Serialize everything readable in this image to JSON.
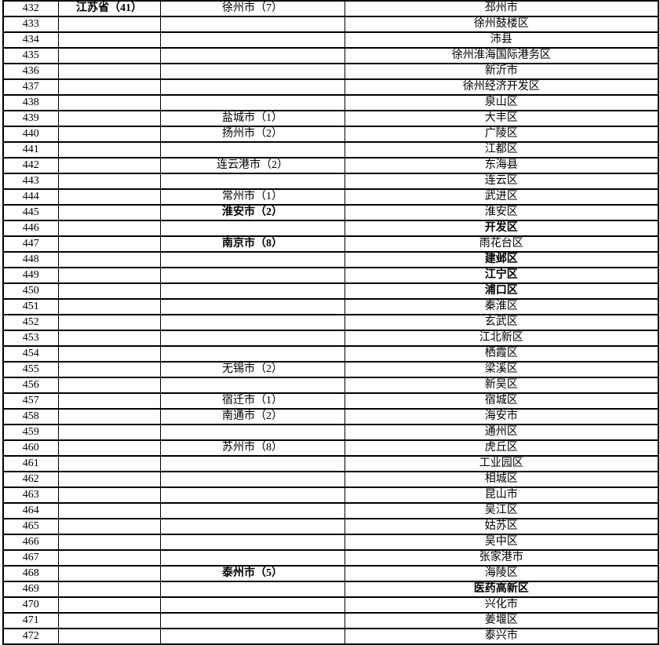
{
  "colors": {
    "background": "#ffffff",
    "border": "#000000",
    "text": "#000000"
  },
  "table": {
    "columns": [
      {
        "key": "no",
        "name": "row-number"
      },
      {
        "key": "province",
        "name": "province-cell"
      },
      {
        "key": "city",
        "name": "city-cell"
      },
      {
        "key": "district",
        "name": "district-cell"
      }
    ],
    "rows": [
      {
        "no": "432",
        "province": "江苏省（41）",
        "province_bold": true,
        "city": "徐州市（7）",
        "district": "邳州市"
      },
      {
        "no": "433",
        "province": "",
        "city": "",
        "district": "徐州鼓楼区"
      },
      {
        "no": "434",
        "province": "",
        "city": "",
        "district": "沛县"
      },
      {
        "no": "435",
        "province": "",
        "city": "",
        "district": "徐州淮海国际港务区"
      },
      {
        "no": "436",
        "province": "",
        "city": "",
        "district": "新沂市"
      },
      {
        "no": "437",
        "province": "",
        "city": "",
        "district": "徐州经济开发区"
      },
      {
        "no": "438",
        "province": "",
        "city": "",
        "district": "泉山区"
      },
      {
        "no": "439",
        "province": "",
        "city": "盐城市（1）",
        "district": "大丰区"
      },
      {
        "no": "440",
        "province": "",
        "city": "扬州市（2）",
        "district": "广陵区"
      },
      {
        "no": "441",
        "province": "",
        "city": "",
        "district": "江都区"
      },
      {
        "no": "442",
        "province": "",
        "city": "连云港市（2）",
        "district": "东海县"
      },
      {
        "no": "443",
        "province": "",
        "city": "",
        "district": "连云区"
      },
      {
        "no": "444",
        "province": "",
        "city": "常州市（1）",
        "district": "武进区"
      },
      {
        "no": "445",
        "province": "",
        "city": "淮安市（2）",
        "city_bold": true,
        "district": "淮安区"
      },
      {
        "no": "446",
        "province": "",
        "city": "",
        "district": "开发区",
        "district_bold": true
      },
      {
        "no": "447",
        "province": "",
        "city": "南京市（8）",
        "city_bold": true,
        "district": "雨花台区"
      },
      {
        "no": "448",
        "province": "",
        "city": "",
        "district": "建邺区",
        "district_bold": true
      },
      {
        "no": "449",
        "province": "",
        "city": "",
        "district": "江宁区",
        "district_bold": true
      },
      {
        "no": "450",
        "province": "",
        "city": "",
        "district": "浦口区",
        "district_bold": true
      },
      {
        "no": "451",
        "province": "",
        "city": "",
        "district": "秦淮区"
      },
      {
        "no": "452",
        "province": "",
        "city": "",
        "district": "玄武区"
      },
      {
        "no": "453",
        "province": "",
        "city": "",
        "district": "江北新区"
      },
      {
        "no": "454",
        "province": "",
        "city": "",
        "district": "栖霞区"
      },
      {
        "no": "455",
        "province": "",
        "city": "无锡市（2）",
        "district": "梁溪区"
      },
      {
        "no": "456",
        "province": "",
        "city": "",
        "district": "新吴区"
      },
      {
        "no": "457",
        "province": "",
        "city": "宿迁市（1）",
        "district": "宿城区"
      },
      {
        "no": "458",
        "province": "",
        "city": "南通市（2）",
        "district": "海安市"
      },
      {
        "no": "459",
        "province": "",
        "city": "",
        "district": "通州区"
      },
      {
        "no": "460",
        "province": "",
        "city": "苏州市（8）",
        "district": "虎丘区"
      },
      {
        "no": "461",
        "province": "",
        "city": "",
        "district": "工业园区"
      },
      {
        "no": "462",
        "province": "",
        "city": "",
        "district": "相城区"
      },
      {
        "no": "463",
        "province": "",
        "city": "",
        "district": "昆山市"
      },
      {
        "no": "464",
        "province": "",
        "city": "",
        "district": "吴江区"
      },
      {
        "no": "465",
        "province": "",
        "city": "",
        "district": "姑苏区"
      },
      {
        "no": "466",
        "province": "",
        "city": "",
        "district": "吴中区"
      },
      {
        "no": "467",
        "province": "",
        "city": "",
        "district": "张家港市"
      },
      {
        "no": "468",
        "province": "",
        "city": "泰州市（5）",
        "city_bold": true,
        "district": "海陵区"
      },
      {
        "no": "469",
        "province": "",
        "city": "",
        "district": "医药高新区",
        "district_bold": true
      },
      {
        "no": "470",
        "province": "",
        "city": "",
        "district": "兴化市"
      },
      {
        "no": "471",
        "province": "",
        "city": "",
        "district": "姜堰区"
      },
      {
        "no": "472",
        "province": "",
        "city": "",
        "district": "泰兴市"
      }
    ]
  }
}
